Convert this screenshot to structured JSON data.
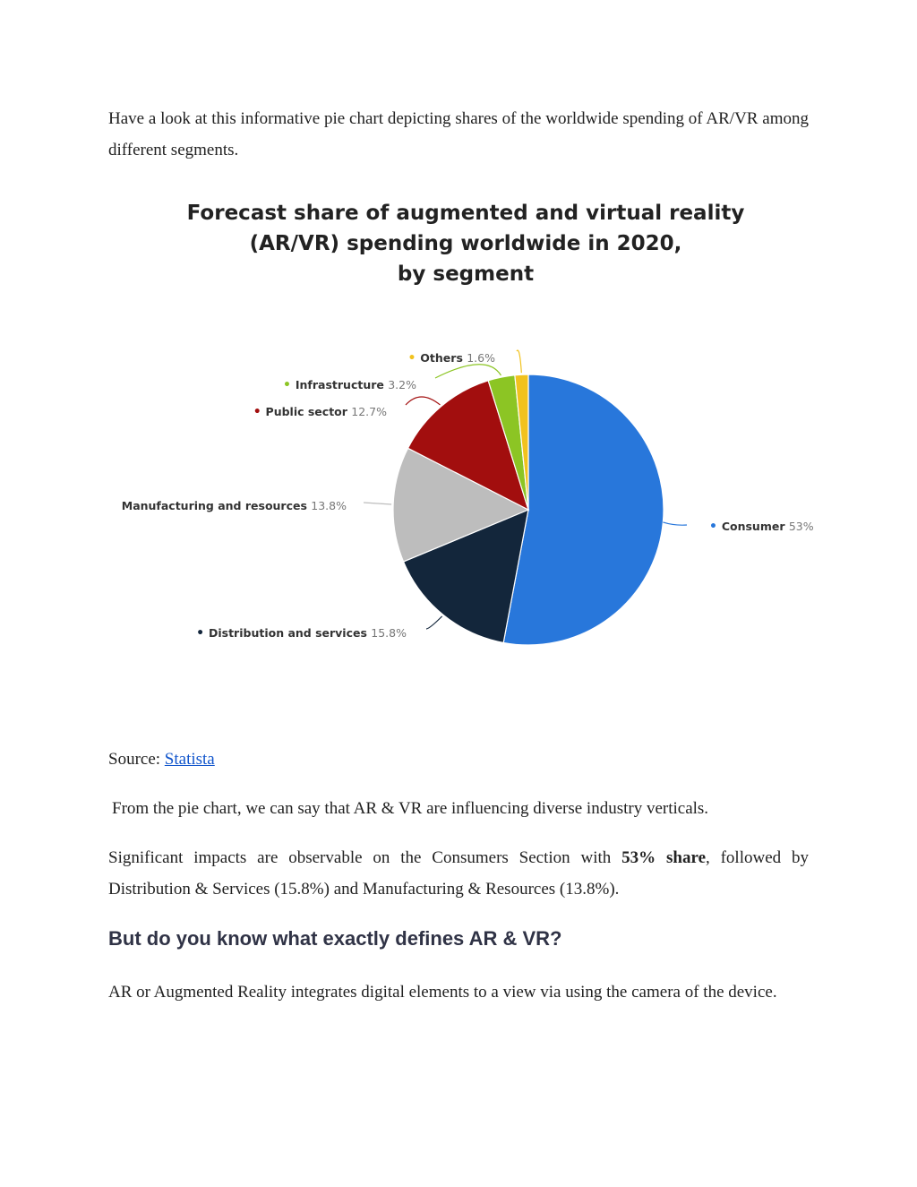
{
  "intro": {
    "text": "Have a look at this informative pie chart depicting shares of the worldwide spending of AR/VR among different segments."
  },
  "chart_data": {
    "type": "pie",
    "title": [
      "Forecast share of augmented and virtual reality",
      "(AR/VR) spending worldwide in 2020,",
      "by segment"
    ],
    "slices": [
      {
        "label": "Consumer",
        "value": 53,
        "value_label": "53%",
        "color": "#2877db"
      },
      {
        "label": "Distribution and services",
        "value": 15.8,
        "value_label": "15.8%",
        "color": "#13263b"
      },
      {
        "label": "Manufacturing and resources",
        "value": 13.8,
        "value_label": "13.8%",
        "color": "#bdbdbd"
      },
      {
        "label": "Public sector",
        "value": 12.7,
        "value_label": "12.7%",
        "color": "#a20e0e"
      },
      {
        "label": "Infrastructure",
        "value": 3.2,
        "value_label": "3.2%",
        "color": "#8cc524"
      },
      {
        "label": "Others",
        "value": 1.6,
        "value_label": "1.6%",
        "color": "#f1c21e"
      }
    ]
  },
  "source": {
    "prefix": "Source: ",
    "link_text": "Statista"
  },
  "paragraph1": {
    "text": "From the pie chart, we can say that AR & VR are influencing diverse industry verticals."
  },
  "paragraph2": {
    "before": "Significant impacts are observable on the Consumers Section with ",
    "bold": "53% share",
    "after": ", followed by Distribution & Services (15.8%) and Manufacturing & Resources (13.8%)."
  },
  "heading": {
    "text": "But do you know what exactly defines AR & VR?"
  },
  "paragraph3": {
    "text": "AR or Augmented Reality integrates digital elements to a view via using the camera of the device."
  }
}
